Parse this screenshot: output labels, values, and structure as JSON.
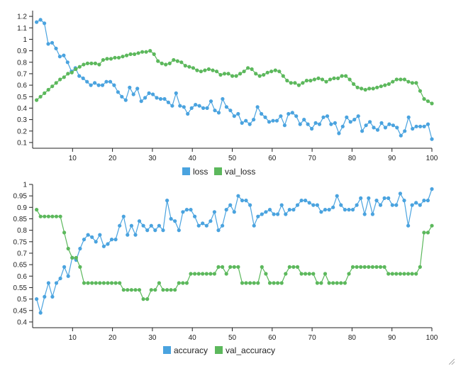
{
  "chart_data": [
    {
      "type": "line",
      "xlim": [
        0,
        100
      ],
      "ylim": [
        0.05,
        1.25
      ],
      "xticks": [
        10,
        20,
        30,
        40,
        50,
        60,
        70,
        80,
        90,
        100
      ],
      "yticks": [
        0.1,
        0.2,
        0.3,
        0.4,
        0.5,
        0.6,
        0.7,
        0.8,
        0.9,
        1,
        1.1,
        1.2
      ],
      "legend_position": "bottom",
      "series": [
        {
          "name": "loss",
          "color": "#4aa3df",
          "values": [
            1.15,
            1.17,
            1.14,
            0.96,
            0.97,
            0.92,
            0.85,
            0.86,
            0.8,
            0.72,
            0.75,
            0.68,
            0.66,
            0.63,
            0.6,
            0.62,
            0.6,
            0.6,
            0.63,
            0.63,
            0.6,
            0.54,
            0.5,
            0.47,
            0.58,
            0.52,
            0.57,
            0.46,
            0.49,
            0.53,
            0.52,
            0.49,
            0.48,
            0.48,
            0.45,
            0.42,
            0.53,
            0.42,
            0.41,
            0.35,
            0.4,
            0.43,
            0.42,
            0.4,
            0.4,
            0.46,
            0.38,
            0.36,
            0.48,
            0.41,
            0.38,
            0.33,
            0.35,
            0.27,
            0.29,
            0.26,
            0.3,
            0.41,
            0.35,
            0.32,
            0.28,
            0.29,
            0.29,
            0.33,
            0.25,
            0.35,
            0.36,
            0.33,
            0.26,
            0.3,
            0.26,
            0.22,
            0.27,
            0.26,
            0.32,
            0.33,
            0.26,
            0.27,
            0.18,
            0.24,
            0.32,
            0.28,
            0.3,
            0.33,
            0.2,
            0.25,
            0.28,
            0.23,
            0.21,
            0.27,
            0.23,
            0.26,
            0.25,
            0.23,
            0.16,
            0.2,
            0.32,
            0.22,
            0.24,
            0.24,
            0.24,
            0.26,
            0.13
          ]
        },
        {
          "name": "val_loss",
          "color": "#5cb85c",
          "values": [
            0.47,
            0.5,
            0.53,
            0.56,
            0.59,
            0.62,
            0.65,
            0.67,
            0.7,
            0.71,
            0.74,
            0.76,
            0.78,
            0.79,
            0.79,
            0.79,
            0.78,
            0.82,
            0.83,
            0.83,
            0.84,
            0.84,
            0.85,
            0.86,
            0.87,
            0.87,
            0.88,
            0.89,
            0.89,
            0.9,
            0.87,
            0.81,
            0.79,
            0.78,
            0.79,
            0.82,
            0.81,
            0.8,
            0.77,
            0.76,
            0.75,
            0.73,
            0.72,
            0.73,
            0.74,
            0.73,
            0.72,
            0.69,
            0.7,
            0.7,
            0.68,
            0.68,
            0.7,
            0.72,
            0.75,
            0.74,
            0.7,
            0.68,
            0.69,
            0.71,
            0.72,
            0.73,
            0.72,
            0.68,
            0.64,
            0.62,
            0.62,
            0.6,
            0.62,
            0.64,
            0.64,
            0.65,
            0.66,
            0.65,
            0.63,
            0.65,
            0.66,
            0.66,
            0.68,
            0.68,
            0.65,
            0.61,
            0.58,
            0.57,
            0.56,
            0.57,
            0.57,
            0.58,
            0.59,
            0.6,
            0.61,
            0.63,
            0.65,
            0.65,
            0.65,
            0.63,
            0.62,
            0.62,
            0.55,
            0.48,
            0.46,
            0.44
          ]
        }
      ]
    },
    {
      "type": "line",
      "xlim": [
        0,
        100
      ],
      "ylim": [
        0.375,
        1.0
      ],
      "xticks": [
        10,
        20,
        30,
        40,
        50,
        60,
        70,
        80,
        90,
        100
      ],
      "yticks": [
        0.4,
        0.45,
        0.5,
        0.55,
        0.6,
        0.65,
        0.7,
        0.75,
        0.8,
        0.85,
        0.9,
        0.95,
        1
      ],
      "legend_position": "bottom",
      "series": [
        {
          "name": "accuracy",
          "color": "#4aa3df",
          "values": [
            0.5,
            0.44,
            0.51,
            0.57,
            0.51,
            0.57,
            0.59,
            0.64,
            0.6,
            0.68,
            0.67,
            0.72,
            0.76,
            0.78,
            0.77,
            0.75,
            0.78,
            0.73,
            0.74,
            0.76,
            0.76,
            0.82,
            0.86,
            0.78,
            0.82,
            0.78,
            0.84,
            0.82,
            0.8,
            0.82,
            0.8,
            0.82,
            0.8,
            0.93,
            0.85,
            0.84,
            0.8,
            0.88,
            0.89,
            0.89,
            0.86,
            0.82,
            0.83,
            0.82,
            0.84,
            0.88,
            0.8,
            0.82,
            0.89,
            0.91,
            0.88,
            0.95,
            0.93,
            0.93,
            0.91,
            0.82,
            0.86,
            0.87,
            0.88,
            0.89,
            0.87,
            0.87,
            0.91,
            0.87,
            0.89,
            0.89,
            0.91,
            0.93,
            0.93,
            0.92,
            0.91,
            0.91,
            0.88,
            0.89,
            0.89,
            0.9,
            0.95,
            0.91,
            0.89,
            0.89,
            0.89,
            0.91,
            0.94,
            0.87,
            0.94,
            0.87,
            0.93,
            0.91,
            0.94,
            0.94,
            0.91,
            0.91,
            0.96,
            0.93,
            0.82,
            0.91,
            0.92,
            0.91,
            0.93,
            0.93,
            0.98
          ]
        },
        {
          "name": "val_accuracy",
          "color": "#5cb85c",
          "values": [
            0.89,
            0.86,
            0.86,
            0.86,
            0.86,
            0.86,
            0.86,
            0.79,
            0.72,
            0.68,
            0.68,
            0.64,
            0.57,
            0.57,
            0.57,
            0.57,
            0.57,
            0.57,
            0.57,
            0.57,
            0.57,
            0.57,
            0.54,
            0.54,
            0.54,
            0.54,
            0.54,
            0.5,
            0.5,
            0.54,
            0.54,
            0.57,
            0.54,
            0.54,
            0.54,
            0.54,
            0.57,
            0.57,
            0.57,
            0.61,
            0.61,
            0.61,
            0.61,
            0.61,
            0.61,
            0.61,
            0.64,
            0.64,
            0.61,
            0.64,
            0.64,
            0.64,
            0.57,
            0.57,
            0.57,
            0.57,
            0.57,
            0.64,
            0.61,
            0.57,
            0.57,
            0.57,
            0.57,
            0.61,
            0.64,
            0.64,
            0.64,
            0.61,
            0.61,
            0.61,
            0.61,
            0.57,
            0.57,
            0.61,
            0.57,
            0.57,
            0.57,
            0.57,
            0.57,
            0.61,
            0.64,
            0.64,
            0.64,
            0.64,
            0.64,
            0.64,
            0.64,
            0.64,
            0.64,
            0.61,
            0.61,
            0.61,
            0.61,
            0.61,
            0.61,
            0.61,
            0.61,
            0.64,
            0.79,
            0.79,
            0.82
          ]
        }
      ]
    }
  ]
}
